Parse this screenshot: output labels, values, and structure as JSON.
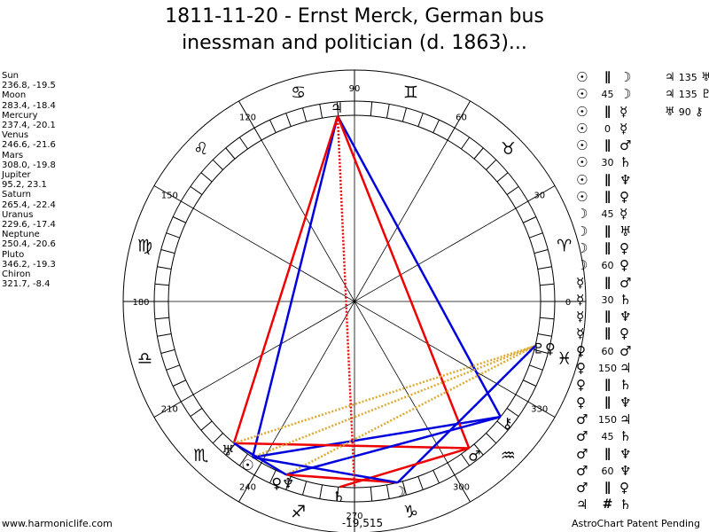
{
  "title": {
    "line1": "1811-11-20 - Ernst Merck, German bus",
    "line2": "inessman and politician (d. 1863)..."
  },
  "planets": [
    {
      "name": "Sun",
      "coords": "236.8, -19.5"
    },
    {
      "name": "Moon",
      "coords": "283.4, -18.4"
    },
    {
      "name": "Mercury",
      "coords": "237.4, -20.1"
    },
    {
      "name": "Venus",
      "coords": "246.6, -21.6"
    },
    {
      "name": "Mars",
      "coords": "308.0, -19.8"
    },
    {
      "name": "Jupiter",
      "coords": "95.2, 23.1"
    },
    {
      "name": "Saturn",
      "coords": "265.4, -22.4"
    },
    {
      "name": "Uranus",
      "coords": "229.6, -17.4"
    },
    {
      "name": "Neptune",
      "coords": "250.4, -20.6"
    },
    {
      "name": "Pluto",
      "coords": "346.2, -19.3"
    },
    {
      "name": "Chiron",
      "coords": "321.7, -8.4"
    }
  ],
  "wheel": {
    "degree_labels": [
      "0",
      "30",
      "60",
      "90",
      "120",
      "150",
      "180",
      "210",
      "240",
      "270",
      "300",
      "330"
    ],
    "signs": [
      "♈",
      "♉",
      "♊",
      "♋",
      "♌",
      "♍",
      "♎",
      "♏",
      "♐",
      "♑",
      "♒",
      "♓"
    ],
    "bottom_label": "-19,515"
  },
  "chart_placements": [
    {
      "glyph": "♃",
      "lon": 95.2
    },
    {
      "glyph": "☽",
      "lon": 283.4
    },
    {
      "glyph": "♄",
      "lon": 265.4
    },
    {
      "glyph": "♂",
      "lon": 308.0
    },
    {
      "glyph": "⚷",
      "lon": 321.7
    },
    {
      "glyph": "♇♀",
      "lon": 346.2
    },
    {
      "glyph": "♅",
      "lon": 229.6
    },
    {
      "glyph": "☉",
      "lon": 236.8
    },
    {
      "glyph": "♀♆",
      "lon": 248.5
    }
  ],
  "chart_lines": [
    {
      "from": 95.2,
      "to": 236.8,
      "color": "#0000dd"
    },
    {
      "from": 95.2,
      "to": 321.7,
      "color": "#0000dd"
    },
    {
      "from": 236.8,
      "to": 321.7,
      "color": "#0000dd"
    },
    {
      "from": 95.2,
      "to": 229.6,
      "color": "#ee0000"
    },
    {
      "from": 95.2,
      "to": 308.0,
      "color": "#ee0000"
    },
    {
      "from": 229.6,
      "to": 308.0,
      "color": "#ee0000"
    },
    {
      "from": 229.6,
      "to": 346.2,
      "color": "#ddaa33",
      "dotted": true
    },
    {
      "from": 236.8,
      "to": 346.2,
      "color": "#ddaa33",
      "dotted": true
    },
    {
      "from": 248.5,
      "to": 346.2,
      "color": "#ddaa33",
      "dotted": true
    },
    {
      "from": 283.4,
      "to": 346.2,
      "color": "#0000dd"
    },
    {
      "from": 265.4,
      "to": 308.0,
      "color": "#ee0000"
    },
    {
      "from": 248.5,
      "to": 321.7,
      "color": "#0000dd"
    },
    {
      "from": 248.5,
      "to": 283.4,
      "color": "#ee0000"
    },
    {
      "from": 236.8,
      "to": 283.4,
      "color": "#0000dd"
    },
    {
      "from": 229.6,
      "to": 248.5,
      "color": "#0000dd"
    },
    {
      "from": 95.2,
      "to": 270.0,
      "color": "#ee0000",
      "dotted": true
    }
  ],
  "aspects": [
    {
      "p1": "☉",
      "asp": "∥",
      "p2": "☽"
    },
    {
      "p1": "☉",
      "asp": "45",
      "p2": "☽"
    },
    {
      "p1": "☉",
      "asp": "∥",
      "p2": "☿"
    },
    {
      "p1": "☉",
      "asp": "0",
      "p2": "☿"
    },
    {
      "p1": "☉",
      "asp": "∥",
      "p2": "♂"
    },
    {
      "p1": "☉",
      "asp": "30",
      "p2": "♄"
    },
    {
      "p1": "☉",
      "asp": "∥",
      "p2": "♆"
    },
    {
      "p1": "☉",
      "asp": "∥",
      "p2": "♀"
    },
    {
      "p1": "☽",
      "asp": "45",
      "p2": "☿"
    },
    {
      "p1": "☽",
      "asp": "∥",
      "p2": "♅"
    },
    {
      "p1": "☽",
      "asp": "∥",
      "p2": "♀"
    },
    {
      "p1": "☽",
      "asp": "60",
      "p2": "♀"
    },
    {
      "p1": "☿",
      "asp": "∥",
      "p2": "♂"
    },
    {
      "p1": "☿",
      "asp": "30",
      "p2": "♄"
    },
    {
      "p1": "☿",
      "asp": "∥",
      "p2": "♆"
    },
    {
      "p1": "☿",
      "asp": "∥",
      "p2": "♀"
    },
    {
      "p1": "♀",
      "asp": "60",
      "p2": "♂"
    },
    {
      "p1": "♀",
      "asp": "150",
      "p2": "♃"
    },
    {
      "p1": "♀",
      "asp": "∥",
      "p2": "♄"
    },
    {
      "p1": "♀",
      "asp": "∥",
      "p2": "♆"
    },
    {
      "p1": "♂",
      "asp": "150",
      "p2": "♃"
    },
    {
      "p1": "♂",
      "asp": "45",
      "p2": "♄"
    },
    {
      "p1": "♂",
      "asp": "∥",
      "p2": "♆"
    },
    {
      "p1": "♂",
      "asp": "60",
      "p2": "♆"
    },
    {
      "p1": "♂",
      "asp": "∥",
      "p2": "♀"
    },
    {
      "p1": "♃",
      "asp": "#",
      "p2": "♄"
    }
  ],
  "aspects_col2": [
    {
      "p1": "♃",
      "asp": "135",
      "p2": "♅"
    },
    {
      "p1": "♃",
      "asp": "135",
      "p2": "♇"
    },
    {
      "p1": "♅",
      "asp": "90",
      "p2": "⚷"
    }
  ],
  "footer": {
    "left": "www.harmoniclife.com",
    "right": "AstroChart Patent Pending"
  }
}
